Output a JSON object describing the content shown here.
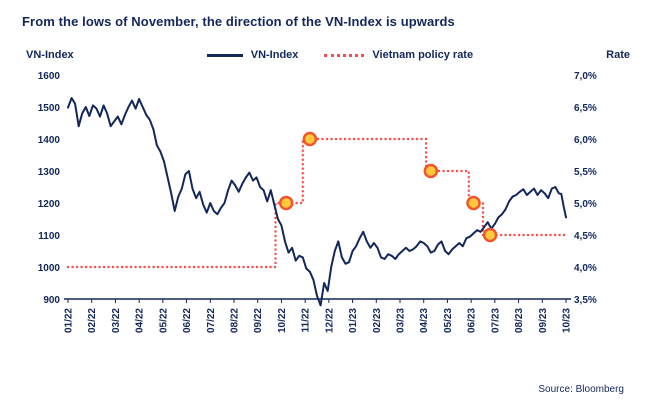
{
  "title": "From the lows of November, the direction of the VN-Index is upwards",
  "source": "Source: Bloomberg",
  "chart_data": {
    "type": "line",
    "title": "From the lows of November, the direction of the VN-Index is upwards",
    "grid": false,
    "legend_position": "top-center",
    "x_range": [
      0,
      21
    ],
    "x_tick_labels": [
      "01/22",
      "02/22",
      "03/22",
      "04/22",
      "05/22",
      "06/22",
      "07/22",
      "08/22",
      "09/22",
      "10/22",
      "11/22",
      "12/22",
      "01/23",
      "02/23",
      "03/23",
      "04/23",
      "05/23",
      "06/23",
      "07/23",
      "08/23",
      "09/23",
      "10/23"
    ],
    "left_axis": {
      "title": "VN-Index",
      "min": 900,
      "max": 1600,
      "ticks": [
        1600,
        1500,
        1400,
        1300,
        1200,
        1100,
        1000,
        900
      ]
    },
    "right_axis": {
      "title": "Rate",
      "min": 3.5,
      "max": 7.0,
      "ticks": [
        7.0,
        6.5,
        6.0,
        5.5,
        5.0,
        4.5,
        4.0,
        3.5
      ],
      "tick_labels": [
        "7,0%",
        "6,5%",
        "6,0%",
        "5,5%",
        "5,0%",
        "4,5%",
        "4,0%",
        "3,5%"
      ]
    },
    "colors": {
      "vn_index": "#14275b",
      "policy_rate": "#fb4a47",
      "marker_fill": "#ffc93c",
      "marker_stroke": "#f2552c",
      "axis": "#14275b"
    },
    "series": [
      {
        "name": "VN-Index",
        "type": "line",
        "axis": "left",
        "color": "#14275b",
        "points": [
          [
            0.0,
            1498
          ],
          [
            0.15,
            1528
          ],
          [
            0.3,
            1510
          ],
          [
            0.45,
            1440
          ],
          [
            0.6,
            1480
          ],
          [
            0.75,
            1500
          ],
          [
            0.9,
            1472
          ],
          [
            1.05,
            1505
          ],
          [
            1.2,
            1495
          ],
          [
            1.35,
            1470
          ],
          [
            1.5,
            1505
          ],
          [
            1.65,
            1480
          ],
          [
            1.8,
            1440
          ],
          [
            1.95,
            1455
          ],
          [
            2.1,
            1470
          ],
          [
            2.25,
            1446
          ],
          [
            2.4,
            1475
          ],
          [
            2.55,
            1500
          ],
          [
            2.7,
            1520
          ],
          [
            2.85,
            1495
          ],
          [
            3.0,
            1525
          ],
          [
            3.15,
            1500
          ],
          [
            3.3,
            1475
          ],
          [
            3.45,
            1460
          ],
          [
            3.6,
            1430
          ],
          [
            3.75,
            1380
          ],
          [
            3.9,
            1360
          ],
          [
            4.05,
            1330
          ],
          [
            4.2,
            1280
          ],
          [
            4.35,
            1230
          ],
          [
            4.5,
            1175
          ],
          [
            4.65,
            1220
          ],
          [
            4.8,
            1245
          ],
          [
            4.95,
            1290
          ],
          [
            5.1,
            1300
          ],
          [
            5.25,
            1245
          ],
          [
            5.4,
            1215
          ],
          [
            5.55,
            1235
          ],
          [
            5.7,
            1195
          ],
          [
            5.85,
            1170
          ],
          [
            6.0,
            1200
          ],
          [
            6.15,
            1175
          ],
          [
            6.3,
            1165
          ],
          [
            6.45,
            1185
          ],
          [
            6.6,
            1200
          ],
          [
            6.75,
            1240
          ],
          [
            6.9,
            1270
          ],
          [
            7.05,
            1255
          ],
          [
            7.2,
            1235
          ],
          [
            7.35,
            1260
          ],
          [
            7.5,
            1280
          ],
          [
            7.65,
            1295
          ],
          [
            7.8,
            1270
          ],
          [
            7.95,
            1280
          ],
          [
            8.1,
            1250
          ],
          [
            8.25,
            1240
          ],
          [
            8.4,
            1205
          ],
          [
            8.55,
            1240
          ],
          [
            8.7,
            1195
          ],
          [
            8.85,
            1150
          ],
          [
            9.0,
            1130
          ],
          [
            9.15,
            1080
          ],
          [
            9.3,
            1045
          ],
          [
            9.45,
            1060
          ],
          [
            9.6,
            1020
          ],
          [
            9.75,
            1035
          ],
          [
            9.9,
            1030
          ],
          [
            10.05,
            995
          ],
          [
            10.2,
            985
          ],
          [
            10.35,
            960
          ],
          [
            10.5,
            910
          ],
          [
            10.65,
            880
          ],
          [
            10.8,
            950
          ],
          [
            10.95,
            925
          ],
          [
            11.1,
            1000
          ],
          [
            11.25,
            1050
          ],
          [
            11.4,
            1080
          ],
          [
            11.55,
            1030
          ],
          [
            11.7,
            1010
          ],
          [
            11.85,
            1015
          ],
          [
            12.0,
            1050
          ],
          [
            12.15,
            1065
          ],
          [
            12.3,
            1090
          ],
          [
            12.45,
            1110
          ],
          [
            12.6,
            1080
          ],
          [
            12.75,
            1060
          ],
          [
            12.9,
            1075
          ],
          [
            13.05,
            1060
          ],
          [
            13.2,
            1030
          ],
          [
            13.35,
            1025
          ],
          [
            13.5,
            1040
          ],
          [
            13.65,
            1035
          ],
          [
            13.8,
            1025
          ],
          [
            13.95,
            1040
          ],
          [
            14.1,
            1050
          ],
          [
            14.25,
            1060
          ],
          [
            14.4,
            1050
          ],
          [
            14.55,
            1055
          ],
          [
            14.7,
            1065
          ],
          [
            14.85,
            1080
          ],
          [
            15.0,
            1075
          ],
          [
            15.15,
            1065
          ],
          [
            15.3,
            1045
          ],
          [
            15.45,
            1050
          ],
          [
            15.6,
            1070
          ],
          [
            15.75,
            1080
          ],
          [
            15.9,
            1050
          ],
          [
            16.05,
            1040
          ],
          [
            16.2,
            1055
          ],
          [
            16.35,
            1065
          ],
          [
            16.5,
            1075
          ],
          [
            16.65,
            1065
          ],
          [
            16.8,
            1090
          ],
          [
            16.95,
            1095
          ],
          [
            17.1,
            1105
          ],
          [
            17.25,
            1115
          ],
          [
            17.4,
            1110
          ],
          [
            17.55,
            1125
          ],
          [
            17.7,
            1140
          ],
          [
            17.85,
            1120
          ],
          [
            18.0,
            1135
          ],
          [
            18.15,
            1155
          ],
          [
            18.3,
            1165
          ],
          [
            18.45,
            1180
          ],
          [
            18.6,
            1205
          ],
          [
            18.75,
            1220
          ],
          [
            18.9,
            1225
          ],
          [
            19.05,
            1235
          ],
          [
            19.2,
            1243
          ],
          [
            19.35,
            1225
          ],
          [
            19.5,
            1235
          ],
          [
            19.65,
            1245
          ],
          [
            19.8,
            1225
          ],
          [
            19.95,
            1240
          ],
          [
            20.1,
            1230
          ],
          [
            20.25,
            1215
          ],
          [
            20.4,
            1245
          ],
          [
            20.55,
            1250
          ],
          [
            20.7,
            1230
          ],
          [
            20.8,
            1228
          ],
          [
            20.9,
            1190
          ],
          [
            21.0,
            1155
          ]
        ]
      },
      {
        "name": "Vietnam policy rate",
        "type": "step-dotted",
        "axis": "right",
        "color": "#fb4a47",
        "points": [
          [
            0,
            4.0
          ],
          [
            8.75,
            4.0
          ],
          [
            8.75,
            5.0
          ],
          [
            9.9,
            5.0
          ],
          [
            9.9,
            6.0
          ],
          [
            15.1,
            6.0
          ],
          [
            15.1,
            5.5
          ],
          [
            16.9,
            5.5
          ],
          [
            16.9,
            5.0
          ],
          [
            17.5,
            5.0
          ],
          [
            17.5,
            4.5
          ],
          [
            21,
            4.5
          ]
        ]
      }
    ],
    "markers": {
      "fill": "#ffc93c",
      "stroke": "#f2552c",
      "points": [
        [
          9.2,
          5.0
        ],
        [
          10.2,
          6.0
        ],
        [
          15.3,
          5.5
        ],
        [
          17.1,
          5.0
        ],
        [
          17.8,
          4.5
        ]
      ]
    }
  }
}
